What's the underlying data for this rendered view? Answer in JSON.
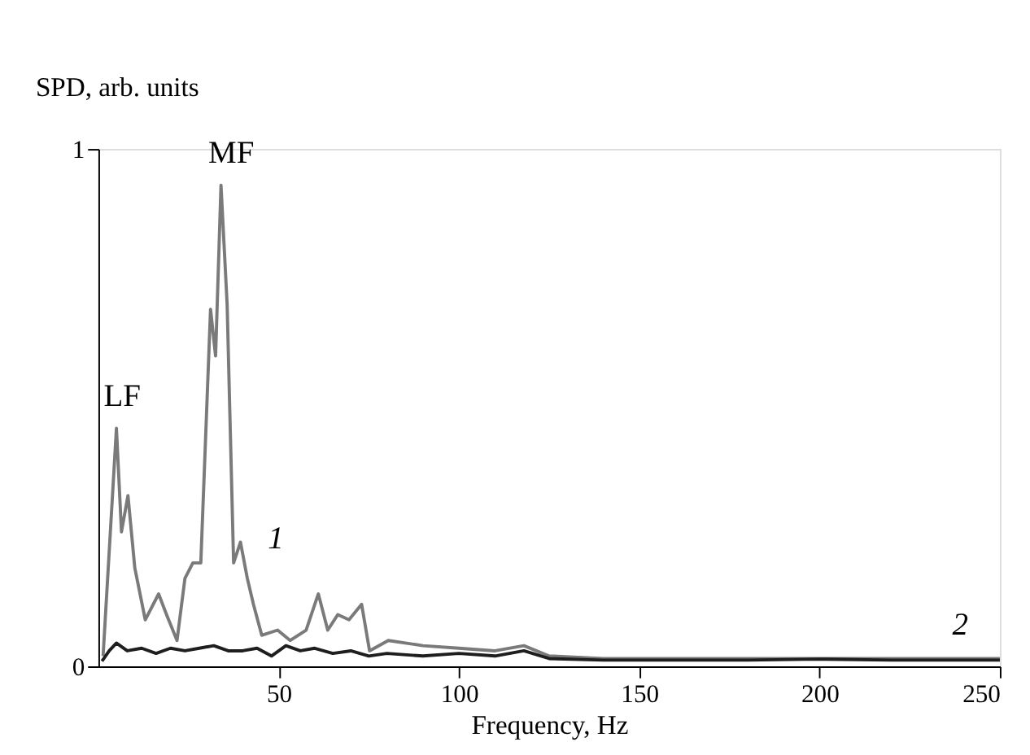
{
  "chart_data": {
    "type": "line",
    "xlabel": "Frequency, Hz",
    "ylabel": "SPD, arb. units",
    "xlim": [
      0,
      250
    ],
    "xticks": [
      50,
      100,
      150,
      200,
      250
    ],
    "ylim": [
      0,
      1
    ],
    "yticks": [
      0,
      1
    ],
    "grid": false,
    "marker": "none",
    "line_style": "solid",
    "annotations": [
      {
        "text": "LF",
        "x": 5,
        "y": 0.46
      },
      {
        "text": "MF",
        "x": 34,
        "y": 0.93
      }
    ],
    "series": [
      {
        "name": "1",
        "color": "#7a7a7a",
        "x": [
          1.3,
          5,
          6.4,
          8.2,
          10.1,
          13,
          16.7,
          18.9,
          21.8,
          24,
          26.2,
          28.4,
          31.1,
          32.5,
          34,
          35.7,
          37.5,
          39.4,
          41.3,
          43,
          45.3,
          49.7,
          53.2,
          57.6,
          61,
          63.6,
          66.4,
          69.5,
          73,
          75.2,
          80.4,
          90,
          100,
          110,
          118,
          125,
          140,
          160,
          180,
          200,
          220,
          240,
          250
        ],
        "values": [
          0.02,
          0.46,
          0.26,
          0.33,
          0.19,
          0.09,
          0.14,
          0.1,
          0.05,
          0.17,
          0.2,
          0.2,
          0.69,
          0.6,
          0.93,
          0.7,
          0.2,
          0.24,
          0.17,
          0.12,
          0.06,
          0.07,
          0.05,
          0.07,
          0.14,
          0.07,
          0.1,
          0.09,
          0.12,
          0.03,
          0.05,
          0.04,
          0.035,
          0.03,
          0.04,
          0.02,
          0.015,
          0.015,
          0.015,
          0.015,
          0.015,
          0.015,
          0.015
        ]
      },
      {
        "name": "2",
        "color": "#1e1e1e",
        "x": [
          1,
          3,
          5,
          8,
          12,
          16,
          20,
          24,
          28,
          32,
          36,
          40,
          44,
          48,
          52,
          56,
          60,
          65,
          70,
          75,
          80,
          90,
          100,
          110,
          118,
          125,
          140,
          160,
          180,
          200,
          220,
          240,
          250
        ],
        "values": [
          0.01,
          0.03,
          0.045,
          0.03,
          0.035,
          0.025,
          0.035,
          0.03,
          0.035,
          0.04,
          0.03,
          0.03,
          0.035,
          0.02,
          0.04,
          0.03,
          0.035,
          0.025,
          0.03,
          0.02,
          0.025,
          0.02,
          0.025,
          0.02,
          0.03,
          0.015,
          0.012,
          0.012,
          0.012,
          0.014,
          0.012,
          0.012,
          0.012
        ]
      }
    ]
  }
}
